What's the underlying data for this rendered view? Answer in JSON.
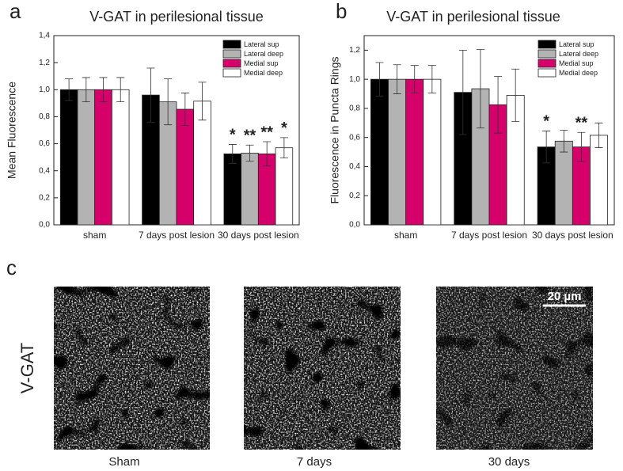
{
  "chart_data": [
    {
      "type": "bar",
      "panel": "a",
      "title": "V-GAT in perilesional tissue",
      "y_label": "Mean Fluorescence",
      "categories": [
        "sham",
        "7 days post lesion",
        "30 days post lesion"
      ],
      "series": [
        {
          "name": "Lateral sup",
          "color": "#000000",
          "values": [
            1.0,
            0.96,
            0.525
          ],
          "errors": [
            0.08,
            0.2,
            0.07
          ],
          "significance": [
            null,
            null,
            "*"
          ]
        },
        {
          "name": "Lateral deep",
          "color": "#b3b3b3",
          "values": [
            1.0,
            0.91,
            0.53
          ],
          "errors": [
            0.09,
            0.17,
            0.06
          ],
          "significance": [
            null,
            null,
            "**"
          ]
        },
        {
          "name": "Medial sup",
          "color": "#d6006b",
          "values": [
            1.0,
            0.855,
            0.525
          ],
          "errors": [
            0.09,
            0.12,
            0.09
          ],
          "significance": [
            null,
            null,
            "**"
          ]
        },
        {
          "name": "Medial deep",
          "color": "#ffffff",
          "values": [
            1.0,
            0.915,
            0.57
          ],
          "errors": [
            0.09,
            0.14,
            0.075
          ],
          "significance": [
            null,
            null,
            "*"
          ]
        }
      ],
      "ylim": [
        0,
        1.4
      ],
      "yticks": [
        {
          "value": 0,
          "label": "0,0"
        },
        {
          "value": 0.2,
          "label": "0,2"
        },
        {
          "value": 0.4,
          "label": "0,4"
        },
        {
          "value": 0.6,
          "label": "0,6"
        },
        {
          "value": 0.8,
          "label": "0,8"
        },
        {
          "value": 1.0,
          "label": "1,0"
        },
        {
          "value": 1.2,
          "label": "1,2"
        },
        {
          "value": 1.4,
          "label": "1,4"
        }
      ],
      "legend": "upper right",
      "grid": false
    },
    {
      "type": "bar",
      "panel": "b",
      "title": "V-GAT in perilesional tissue",
      "y_label": "Fluorescence in Puncta Rings",
      "categories": [
        "sham",
        "7 days post lesion",
        "30 days post lesion"
      ],
      "series": [
        {
          "name": "Lateral sup",
          "color": "#000000",
          "values": [
            1.0,
            0.91,
            0.535
          ],
          "errors": [
            0.115,
            0.29,
            0.11
          ],
          "significance": [
            null,
            null,
            "*"
          ]
        },
        {
          "name": "Lateral deep",
          "color": "#b3b3b3",
          "values": [
            1.0,
            0.935,
            0.575
          ],
          "errors": [
            0.1,
            0.27,
            0.075
          ],
          "significance": [
            null,
            null,
            null
          ]
        },
        {
          "name": "Medial sup",
          "color": "#d6006b",
          "values": [
            1.0,
            0.825,
            0.535
          ],
          "errors": [
            0.095,
            0.195,
            0.1
          ],
          "significance": [
            null,
            null,
            "**"
          ]
        },
        {
          "name": "Medial deep",
          "color": "#ffffff",
          "values": [
            1.0,
            0.89,
            0.615
          ],
          "errors": [
            0.095,
            0.18,
            0.085
          ],
          "significance": [
            null,
            null,
            null
          ]
        }
      ],
      "ylim": [
        0,
        1.3
      ],
      "yticks": [
        {
          "value": 0,
          "label": "0,0"
        },
        {
          "value": 0.2,
          "label": "0,2"
        },
        {
          "value": 0.4,
          "label": "0,4"
        },
        {
          "value": 0.6,
          "label": "0,6"
        },
        {
          "value": 0.8,
          "label": "0,8"
        },
        {
          "value": 1.0,
          "label": "1,0"
        },
        {
          "value": 1.2,
          "label": "1,2"
        }
      ],
      "legend": "upper right",
      "grid": false
    }
  ],
  "micrographs": {
    "panel": "c",
    "row_label": "V-GAT",
    "scale_bar": "20 µm",
    "labels": [
      "Sham",
      "7 days",
      "30 days"
    ]
  }
}
